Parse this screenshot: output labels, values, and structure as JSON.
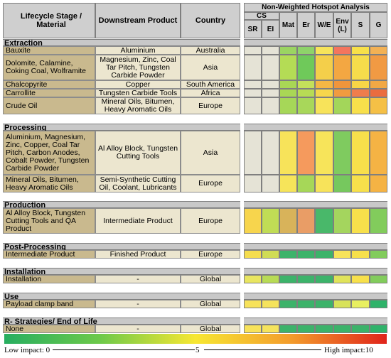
{
  "header": {
    "stage": "Lifecycle Stage / Material",
    "product": "Downstream Product",
    "country": "Country",
    "matrix_title": "Non-Weighted Hotspot Analysis",
    "cs": "CS",
    "cols": [
      "SR",
      "EI",
      "Mat",
      "Er",
      "W/E",
      "Env (L)",
      "S",
      "G"
    ]
  },
  "sections": [
    {
      "title": "Extraction",
      "rows": [
        {
          "stage": "Bauxite",
          "product": "Aluminium",
          "country": "Australia"
        },
        {
          "stage": "Dolomite, Calamine, Coking Coal, Wolframite",
          "product": "Magnesium, Zinc, Coal Tar Pitch, Tungsten Carbide Powder",
          "country": "Asia"
        },
        {
          "stage": "Chalcopyrite",
          "product": "Copper",
          "country": "South America"
        },
        {
          "stage": "Carrollite",
          "product": "Tungsten Carbide Tools",
          "country": "Africa"
        },
        {
          "stage": "Crude Oil",
          "product": "Mineral Oils, Bitumen, Heavy Aromatic Oils",
          "country": "Europe"
        }
      ]
    },
    {
      "title": "Processing",
      "rows": [
        {
          "stage": "Aluminium, Magnesium, Zinc, Copper, Coal Tar Pitch, Carbon Anodes, Cobalt Powder, Tungsten Carbide Powder",
          "product": "Al Alloy Block, Tungsten Cutting Tools",
          "country": "Asia"
        },
        {
          "stage": "Mineral Oils, Bitumen, Heavy Aromatic Oils",
          "product": "Semi-Synthetic Cutting Oil, Coolant, Lubricants",
          "country": "Europe"
        }
      ]
    },
    {
      "title": "Production",
      "rows": [
        {
          "stage": "Al Alloy Block, Tungsten Cutting Tools and QA Product",
          "product": "Intermediate Product",
          "country": "Europe"
        }
      ]
    },
    {
      "title": "Post-Processing",
      "rows": [
        {
          "stage": "Intermediate Product",
          "product": "Finished Product",
          "country": "Europe"
        }
      ]
    },
    {
      "title": "Installation",
      "rows": [
        {
          "stage": "Installation",
          "product": "-",
          "country": "Global"
        }
      ]
    },
    {
      "title": "Use",
      "rows": [
        {
          "stage": "Payload clamp band",
          "product": "-",
          "country": "Global"
        }
      ]
    },
    {
      "title": "R- Strategies/ End of Life",
      "rows": [
        {
          "stage": "None",
          "product": "-",
          "country": "Global"
        }
      ]
    }
  ],
  "legend": {
    "low": "Low impact: 0",
    "mid": "5",
    "high": "High impact:10"
  }
}
